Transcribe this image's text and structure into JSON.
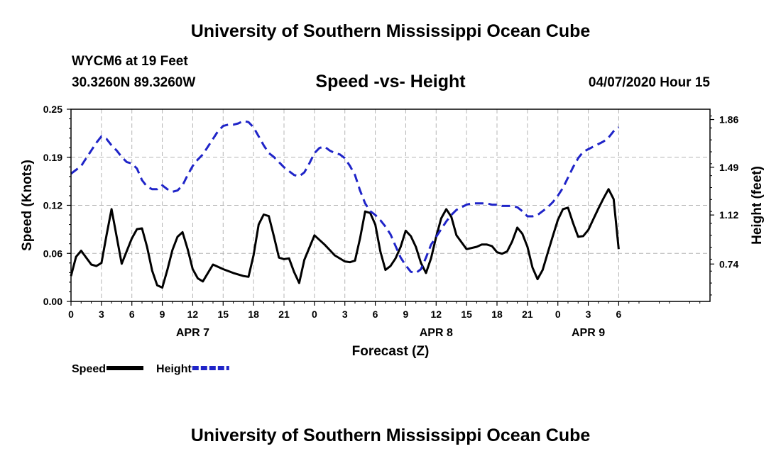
{
  "header": {
    "title": "University of Southern Mississippi Ocean Cube",
    "station": "WYCM6 at 19 Feet",
    "coordinates": "30.3260N 89.3260W",
    "subtitle": "Speed -vs- Height",
    "timestamp": "04/07/2020 Hour 15"
  },
  "footer": {
    "title": "University of Southern Mississippi Ocean Cube"
  },
  "chart_data": {
    "type": "line",
    "title": "Speed -vs- Height",
    "xlabel": "Forecast (Z)",
    "ylabel_left": "Speed (Knots)",
    "ylabel_right": "Height (feet)",
    "x_range": [
      0,
      63
    ],
    "ylim_left": [
      0,
      0.25
    ],
    "ylim_right": [
      0.45,
      1.94
    ],
    "grid": true,
    "x_ticks": [
      {
        "x": 0,
        "label": "0"
      },
      {
        "x": 3,
        "label": "3"
      },
      {
        "x": 6,
        "label": "6"
      },
      {
        "x": 9,
        "label": "9"
      },
      {
        "x": 12,
        "label": "12"
      },
      {
        "x": 15,
        "label": "15"
      },
      {
        "x": 18,
        "label": "18"
      },
      {
        "x": 21,
        "label": "21"
      },
      {
        "x": 24,
        "label": "0"
      },
      {
        "x": 27,
        "label": "3"
      },
      {
        "x": 30,
        "label": "6"
      },
      {
        "x": 33,
        "label": "9"
      },
      {
        "x": 36,
        "label": "12"
      },
      {
        "x": 39,
        "label": "15"
      },
      {
        "x": 42,
        "label": "18"
      },
      {
        "x": 45,
        "label": "21"
      },
      {
        "x": 48,
        "label": "0"
      },
      {
        "x": 51,
        "label": "3"
      },
      {
        "x": 54,
        "label": "6"
      }
    ],
    "date_labels": [
      {
        "x": 12,
        "label": "APR 7"
      },
      {
        "x": 36,
        "label": "APR 8"
      },
      {
        "x": 51,
        "label": "APR 9"
      }
    ],
    "y_ticks_left": [
      "0.00",
      "0.06",
      "0.12",
      "0.19",
      "0.25"
    ],
    "y_tick_values_left": [
      0,
      0.0625,
      0.125,
      0.1875,
      0.25
    ],
    "y_ticks_right": [
      "0.74",
      "1.12",
      "1.49",
      "1.86"
    ],
    "y_tick_values_right": [
      0.74,
      1.12,
      1.49,
      1.86
    ],
    "series": [
      {
        "name": "Speed",
        "axis": "left",
        "color": "#000000",
        "style": "solid",
        "x": [
          0,
          0.5,
          1,
          1.5,
          2,
          2.5,
          3,
          3.5,
          4,
          5,
          6,
          6.5,
          7,
          7.5,
          8,
          8.5,
          9,
          9.5,
          10,
          10.5,
          11,
          11.5,
          12,
          12.5,
          13,
          14,
          15,
          16,
          17,
          17.5,
          18,
          18.5,
          19,
          19.5,
          20,
          20.5,
          21,
          21.5,
          22,
          22.5,
          23,
          24,
          24.5,
          25,
          25.5,
          26,
          27,
          27.5,
          28,
          28.5,
          29,
          29.5,
          30,
          30.5,
          31,
          31.5,
          32,
          32.5,
          33,
          33.5,
          34,
          34.5,
          35,
          35.5,
          36,
          36.5,
          37,
          37.5,
          38,
          39,
          40,
          40.5,
          41,
          41.5,
          42,
          42.5,
          43,
          43.5,
          44,
          44.5,
          45,
          45.5,
          46,
          46.5,
          47,
          47.5,
          48,
          48.5,
          49,
          49.5,
          50,
          50.5,
          51,
          51.5,
          52,
          52.5,
          53,
          53.5,
          54
        ],
        "values": [
          0.033,
          0.058,
          0.066,
          0.057,
          0.048,
          0.046,
          0.05,
          0.086,
          0.12,
          0.049,
          0.082,
          0.094,
          0.095,
          0.071,
          0.04,
          0.021,
          0.018,
          0.041,
          0.067,
          0.084,
          0.09,
          0.068,
          0.042,
          0.03,
          0.026,
          0.048,
          0.042,
          0.037,
          0.033,
          0.032,
          0.06,
          0.1,
          0.113,
          0.111,
          0.085,
          0.057,
          0.055,
          0.056,
          0.038,
          0.024,
          0.054,
          0.086,
          0.08,
          0.074,
          0.067,
          0.06,
          0.052,
          0.051,
          0.053,
          0.082,
          0.117,
          0.115,
          0.1,
          0.065,
          0.041,
          0.046,
          0.056,
          0.071,
          0.092,
          0.085,
          0.071,
          0.05,
          0.037,
          0.056,
          0.084,
          0.108,
          0.12,
          0.11,
          0.086,
          0.068,
          0.071,
          0.074,
          0.074,
          0.072,
          0.064,
          0.062,
          0.065,
          0.078,
          0.096,
          0.088,
          0.071,
          0.044,
          0.029,
          0.041,
          0.063,
          0.085,
          0.106,
          0.12,
          0.122,
          0.102,
          0.084,
          0.085,
          0.093,
          0.107,
          0.121,
          0.134,
          0.146,
          0.133,
          0.068
        ]
      },
      {
        "name": "Height",
        "axis": "right",
        "color": "#1f24c8",
        "style": "dashed",
        "x": [
          0,
          0.5,
          1,
          1.5,
          2,
          2.5,
          3,
          3.5,
          4,
          4.5,
          5,
          5.5,
          6,
          6.5,
          7,
          7.5,
          8,
          8.5,
          9,
          9.5,
          10,
          10.5,
          11,
          11.5,
          12,
          12.5,
          13,
          13.5,
          14,
          14.5,
          15,
          15.5,
          16,
          16.5,
          17,
          17.5,
          18,
          18.5,
          19,
          19.5,
          20,
          20.5,
          21,
          21.5,
          22,
          22.5,
          23,
          23.5,
          24,
          24.5,
          25,
          25.5,
          26,
          26.5,
          27,
          27.5,
          28,
          28.5,
          29,
          29.5,
          30,
          30.5,
          31,
          31.5,
          32,
          32.5,
          33,
          33.5,
          34,
          34.5,
          35,
          35.5,
          36,
          36.5,
          37,
          37.5,
          38,
          38.5,
          39,
          39.5,
          40,
          40.5,
          41,
          41.5,
          42,
          42.5,
          43,
          43.5,
          44,
          44.5,
          45,
          45.5,
          46,
          46.5,
          47,
          47.5,
          48,
          48.5,
          49,
          49.5,
          50,
          50.5,
          51,
          51.5,
          52,
          52.5,
          53,
          53.5,
          54
        ],
        "values": [
          1.44,
          1.47,
          1.5,
          1.56,
          1.62,
          1.68,
          1.73,
          1.71,
          1.66,
          1.62,
          1.57,
          1.53,
          1.52,
          1.48,
          1.39,
          1.34,
          1.32,
          1.32,
          1.35,
          1.32,
          1.3,
          1.31,
          1.35,
          1.43,
          1.5,
          1.55,
          1.59,
          1.65,
          1.71,
          1.77,
          1.81,
          1.82,
          1.82,
          1.83,
          1.85,
          1.84,
          1.8,
          1.73,
          1.66,
          1.6,
          1.57,
          1.53,
          1.49,
          1.46,
          1.43,
          1.42,
          1.45,
          1.52,
          1.6,
          1.64,
          1.65,
          1.62,
          1.6,
          1.59,
          1.56,
          1.5,
          1.43,
          1.31,
          1.21,
          1.15,
          1.12,
          1.08,
          1.03,
          0.97,
          0.88,
          0.79,
          0.73,
          0.68,
          0.67,
          0.7,
          0.79,
          0.89,
          0.95,
          1.01,
          1.07,
          1.12,
          1.16,
          1.18,
          1.2,
          1.21,
          1.21,
          1.21,
          1.21,
          1.2,
          1.2,
          1.19,
          1.19,
          1.19,
          1.18,
          1.15,
          1.11,
          1.11,
          1.12,
          1.15,
          1.18,
          1.22,
          1.27,
          1.33,
          1.41,
          1.49,
          1.56,
          1.61,
          1.63,
          1.65,
          1.67,
          1.69,
          1.72,
          1.77,
          1.8
        ]
      }
    ],
    "legend": [
      {
        "label": "Speed",
        "color": "#000000",
        "style": "solid"
      },
      {
        "label": "Height",
        "color": "#1f24c8",
        "style": "dashed"
      }
    ],
    "legend_position": "bottom-left"
  }
}
